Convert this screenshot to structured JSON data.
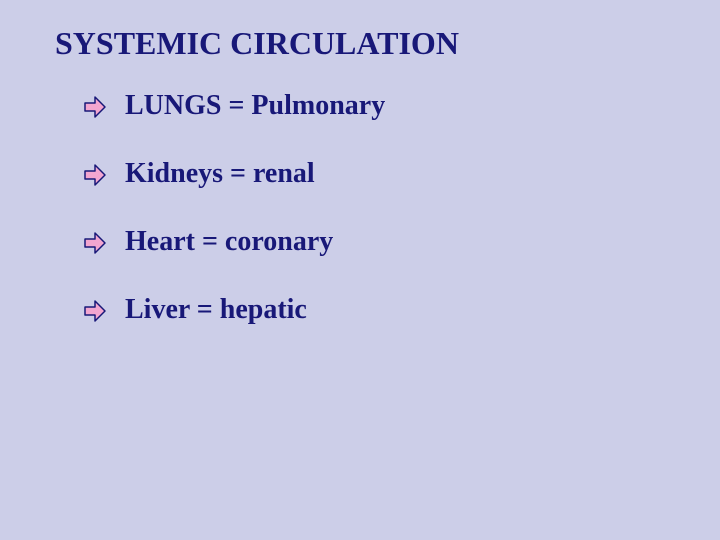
{
  "slide": {
    "title": "SYSTEMIC CIRCULATION",
    "title_fontsize": 32,
    "title_color": "#181878",
    "background_color": "#cccee8",
    "bullets": [
      {
        "label": "LUNGS = Pulmonary"
      },
      {
        "label": "Kidneys = renal"
      },
      {
        "label": "Heart = coronary"
      },
      {
        "label": "Liver = hepatic"
      }
    ],
    "bullet_fontsize": 28,
    "bullet_color": "#181878",
    "arrow": {
      "stroke": "#181878",
      "fill": "#f3a6d0",
      "width": 24,
      "height": 24
    }
  }
}
